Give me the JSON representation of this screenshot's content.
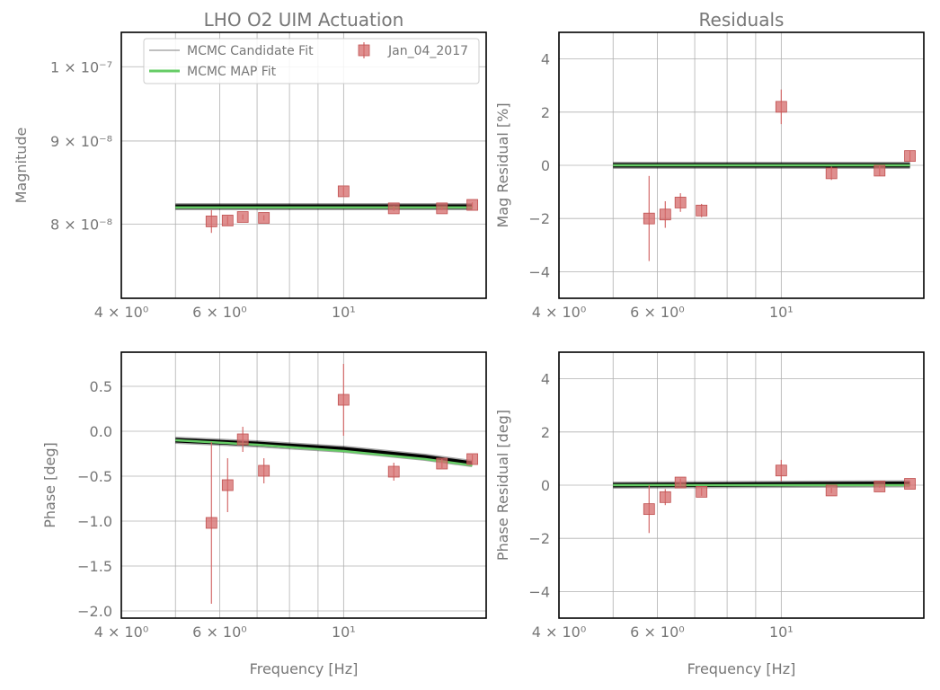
{
  "chart_data": [
    {
      "type": "scatter",
      "id": "mag",
      "title": "LHO O2 UIM Actuation",
      "xlabel": "",
      "ylabel": "Magnitude",
      "xscale": "log",
      "yscale": "log",
      "xlim": [
        4.0,
        18.0
      ],
      "ylim": [
        7.2e-08,
        1.05e-07
      ],
      "xticks": [
        {
          "v": 4,
          "label": "4 × 10⁰"
        },
        {
          "v": 6,
          "label": "6 × 10⁰"
        },
        {
          "v": 10,
          "label": "10¹"
        }
      ],
      "yticks": [
        {
          "v": 8e-08,
          "label": "8 × 10⁻⁸"
        },
        {
          "v": 9e-08,
          "label": "9 × 10⁻⁸"
        },
        {
          "v": 1e-07,
          "label": "1 × 10⁻⁷"
        }
      ],
      "grid": true,
      "legend": {
        "placement": "top-right",
        "entries": [
          "MCMC Candidate Fit",
          "MCMC MAP Fit",
          "Jan_04_2017"
        ]
      },
      "series": [
        {
          "name": "MCMC Candidate Fit",
          "kind": "band",
          "color": "#000000",
          "x": [
            5.0,
            17.0
          ],
          "y": [
            8.2e-08,
            8.2e-08
          ]
        },
        {
          "name": "MCMC MAP Fit",
          "kind": "line",
          "color": "#66cc66",
          "x": [
            5.0,
            17.0
          ],
          "y": [
            8.19e-08,
            8.19e-08
          ]
        },
        {
          "name": "Jan_04_2017",
          "kind": "points",
          "color": "#d46a6a",
          "x": [
            5.8,
            6.2,
            6.6,
            7.2,
            10.0,
            12.3,
            15.0,
            17.0
          ],
          "y": [
            8.03e-08,
            8.04e-08,
            8.08e-08,
            8.07e-08,
            8.38e-08,
            8.18e-08,
            8.18e-08,
            8.22e-08
          ],
          "err": [
            1.3e-09,
            5e-10,
            3e-10,
            3e-10,
            5e-10,
            3e-10,
            2e-10,
            3e-10
          ]
        }
      ]
    },
    {
      "type": "scatter",
      "id": "magres",
      "title": "Residuals",
      "xlabel": "",
      "ylabel": "Mag Residual [%]",
      "xscale": "log",
      "yscale": "linear",
      "xlim": [
        4.0,
        18.0
      ],
      "ylim": [
        -5,
        5
      ],
      "xticks": [
        {
          "v": 4,
          "label": "4 × 10⁰"
        },
        {
          "v": 6,
          "label": "6 × 10⁰"
        },
        {
          "v": 10,
          "label": "10¹"
        }
      ],
      "yticks": [
        {
          "v": -4,
          "label": "−4"
        },
        {
          "v": -2,
          "label": "−2"
        },
        {
          "v": 0,
          "label": "0"
        },
        {
          "v": 2,
          "label": "2"
        },
        {
          "v": 4,
          "label": "4"
        }
      ],
      "grid": true,
      "series": [
        {
          "name": "MCMC Candidate Fit",
          "kind": "band",
          "color": "#000000",
          "x": [
            5.0,
            17.0
          ],
          "y": [
            0.0,
            0.0
          ]
        },
        {
          "name": "MCMC MAP Fit",
          "kind": "line",
          "color": "#66cc66",
          "x": [
            5.0,
            17.0
          ],
          "y": [
            0.0,
            0.0
          ]
        },
        {
          "name": "Jan_04_2017",
          "kind": "points",
          "color": "#d46a6a",
          "x": [
            5.8,
            6.2,
            6.6,
            7.2,
            10.0,
            12.3,
            15.0,
            17.0
          ],
          "y": [
            -2.0,
            -1.85,
            -1.4,
            -1.7,
            2.2,
            -0.3,
            -0.2,
            0.35
          ],
          "err": [
            1.6,
            0.5,
            0.35,
            0.25,
            0.65,
            0.25,
            0.2,
            0.2
          ]
        }
      ]
    },
    {
      "type": "scatter",
      "id": "phase",
      "title": "",
      "xlabel": "Frequency [Hz]",
      "ylabel": "Phase [deg]",
      "xscale": "log",
      "yscale": "linear",
      "xlim": [
        4.0,
        18.0
      ],
      "ylim": [
        -2.08,
        0.88
      ],
      "xticks": [
        {
          "v": 4,
          "label": "4 × 10⁰"
        },
        {
          "v": 6,
          "label": "6 × 10⁰"
        },
        {
          "v": 10,
          "label": "10¹"
        }
      ],
      "yticks": [
        {
          "v": -2.0,
          "label": "−2.0"
        },
        {
          "v": -1.5,
          "label": "−1.5"
        },
        {
          "v": -1.0,
          "label": "−1.0"
        },
        {
          "v": -0.5,
          "label": "−0.5"
        },
        {
          "v": 0.0,
          "label": "0.0"
        },
        {
          "v": 0.5,
          "label": "0.5"
        }
      ],
      "grid": true,
      "series": [
        {
          "name": "MCMC Candidate Fit",
          "kind": "band",
          "color": "#000000",
          "x": [
            5.0,
            7.0,
            10.0,
            14.0,
            17.0
          ],
          "y": [
            -0.1,
            -0.14,
            -0.2,
            -0.29,
            -0.36
          ]
        },
        {
          "name": "MCMC MAP Fit",
          "kind": "line",
          "color": "#66cc66",
          "x": [
            5.0,
            7.0,
            10.0,
            14.0,
            17.0
          ],
          "y": [
            -0.1,
            -0.15,
            -0.22,
            -0.31,
            -0.38
          ]
        },
        {
          "name": "Jan_04_2017",
          "kind": "points",
          "color": "#d46a6a",
          "x": [
            5.8,
            6.2,
            6.6,
            7.2,
            10.0,
            12.3,
            15.0,
            17.0
          ],
          "y": [
            -1.02,
            -0.6,
            -0.09,
            -0.44,
            0.35,
            -0.45,
            -0.36,
            -0.31
          ],
          "err": [
            0.9,
            0.3,
            0.14,
            0.14,
            0.4,
            0.1,
            0.05,
            0.05
          ]
        }
      ]
    },
    {
      "type": "scatter",
      "id": "phaseres",
      "title": "",
      "xlabel": "Frequency [Hz]",
      "ylabel": "Phase Residual [deg]",
      "xscale": "log",
      "yscale": "linear",
      "xlim": [
        4.0,
        18.0
      ],
      "ylim": [
        -5,
        5
      ],
      "xticks": [
        {
          "v": 4,
          "label": "4 × 10⁰"
        },
        {
          "v": 6,
          "label": "6 × 10⁰"
        },
        {
          "v": 10,
          "label": "10¹"
        }
      ],
      "yticks": [
        {
          "v": -4,
          "label": "−4"
        },
        {
          "v": -2,
          "label": "−2"
        },
        {
          "v": 0,
          "label": "0"
        },
        {
          "v": 2,
          "label": "2"
        },
        {
          "v": 4,
          "label": "4"
        }
      ],
      "grid": true,
      "series": [
        {
          "name": "MCMC Candidate Fit",
          "kind": "band",
          "color": "#000000",
          "x": [
            5.0,
            17.0
          ],
          "y": [
            0.0,
            0.05
          ]
        },
        {
          "name": "MCMC MAP Fit",
          "kind": "line",
          "color": "#66cc66",
          "x": [
            5.0,
            17.0
          ],
          "y": [
            0.0,
            0.0
          ]
        },
        {
          "name": "Jan_04_2017",
          "kind": "points",
          "color": "#d46a6a",
          "x": [
            5.8,
            6.2,
            6.6,
            7.2,
            10.0,
            12.3,
            15.0,
            17.0
          ],
          "y": [
            -0.9,
            -0.45,
            0.1,
            -0.25,
            0.55,
            -0.2,
            -0.05,
            0.05
          ],
          "err": [
            0.9,
            0.3,
            0.15,
            0.15,
            0.4,
            0.1,
            0.05,
            0.05
          ]
        }
      ]
    }
  ]
}
